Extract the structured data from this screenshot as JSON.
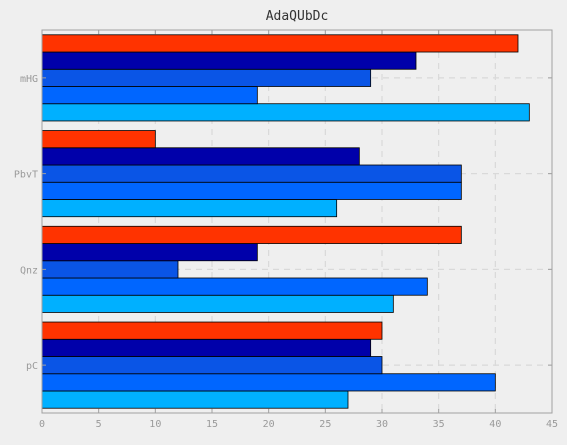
{
  "chart_data": {
    "type": "bar",
    "orientation": "horizontal",
    "title": "AdaQUbDc",
    "xlabel": "",
    "ylabel": "",
    "xlim": [
      0,
      45
    ],
    "x_ticks": [
      0,
      5,
      10,
      15,
      20,
      25,
      30,
      35,
      40,
      45
    ],
    "grid": true,
    "categories": [
      "pC",
      "Qnz",
      "PbvT",
      "mHG"
    ],
    "series": [
      {
        "color": "#00b0ff",
        "values": [
          27,
          31,
          26,
          43
        ]
      },
      {
        "color": "#0066ff",
        "values": [
          40,
          34,
          37,
          19
        ]
      },
      {
        "color": "#0a55e6",
        "values": [
          30,
          12,
          37,
          29
        ]
      },
      {
        "color": "#0000aa",
        "values": [
          29,
          19,
          28,
          33
        ]
      },
      {
        "color": "#ff3300",
        "values": [
          30,
          37,
          10,
          42
        ]
      }
    ],
    "colors": {
      "background": "#efefef",
      "plot_background": "#efefef",
      "grid": "#d9d9d9",
      "axis": "#a0a0a0",
      "tick_label": "#9a9a9a",
      "title": "#333333",
      "bar_edge": "#000000"
    }
  }
}
